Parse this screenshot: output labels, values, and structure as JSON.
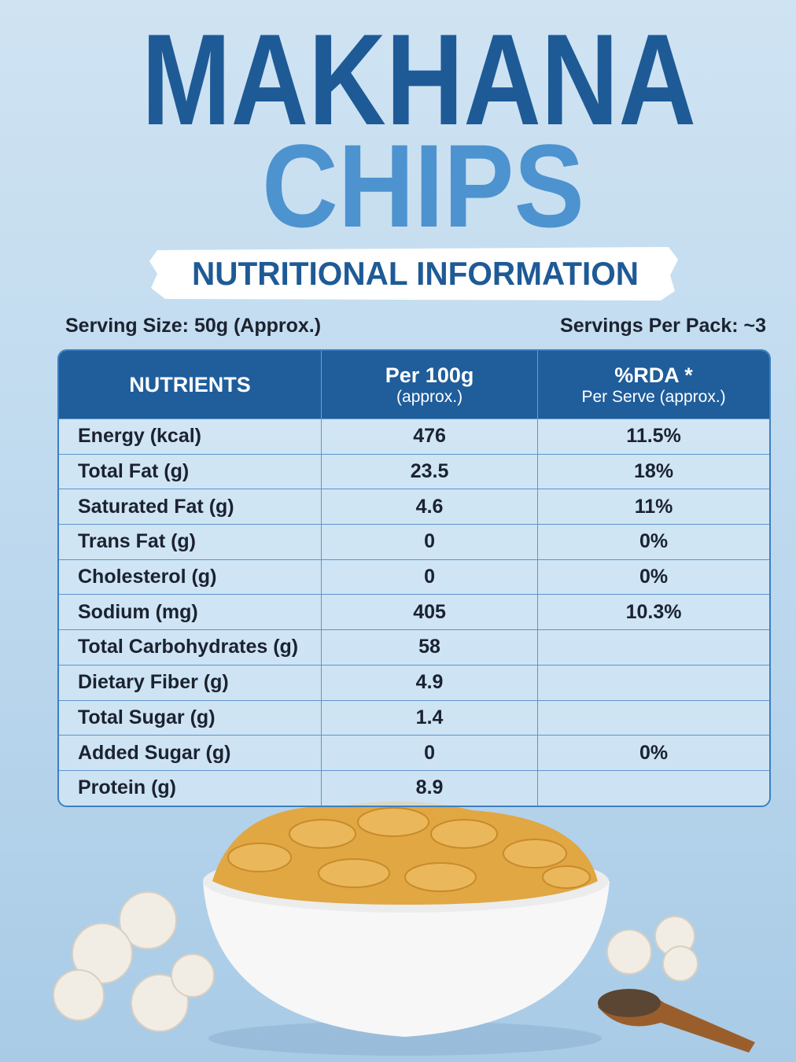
{
  "title": {
    "line1": "MAKHANA",
    "line2": "CHIPS"
  },
  "banner": "NUTRITIONAL INFORMATION",
  "serving_size": "Serving Size: 50g (Approx.)",
  "servings_per_pack": "Servings Per Pack: ~3",
  "table": {
    "headers": [
      {
        "main": "NUTRIENTS"
      },
      {
        "main": "Per 100g",
        "sub": "(approx.)"
      },
      {
        "main": "%RDA *",
        "sub": "Per Serve (approx.)"
      }
    ],
    "rows": [
      [
        "Energy (kcal)",
        "476",
        "11.5%"
      ],
      [
        "Total Fat (g)",
        "23.5",
        "18%"
      ],
      [
        "Saturated Fat (g)",
        "4.6",
        "11%"
      ],
      [
        "Trans Fat (g)",
        "0",
        "0%"
      ],
      [
        "Cholesterol (g)",
        "0",
        "0%"
      ],
      [
        "Sodium (mg)",
        "405",
        "10.3%"
      ],
      [
        "Total Carbohydrates (g)",
        "58",
        null
      ],
      [
        "Dietary Fiber (g)",
        "4.9",
        null
      ],
      [
        "Total Sugar (g)",
        "1.4",
        null
      ],
      [
        "Added Sugar (g)",
        "0",
        "0%"
      ],
      [
        "Protein (g)",
        "8.9",
        null
      ]
    ]
  }
}
